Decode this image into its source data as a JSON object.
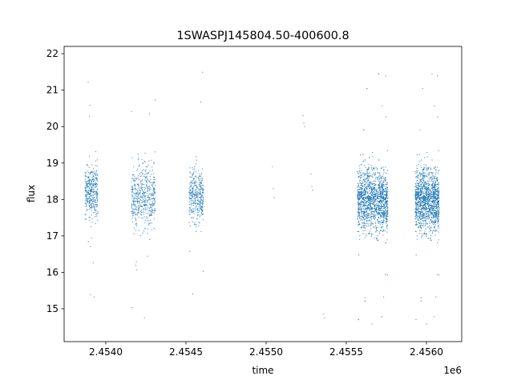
{
  "chart_data": {
    "type": "scatter",
    "title": "1SWASPJ145804.50-400600.8",
    "xlabel": "time",
    "ylabel": "flux",
    "x_offset_label": "1e6",
    "xlim": [
      2453740,
      2456220
    ],
    "ylim": [
      14.1,
      22.2
    ],
    "x_ticks": [
      {
        "value": 2454000,
        "label": "2.4540"
      },
      {
        "value": 2454500,
        "label": "2.4545"
      },
      {
        "value": 2455000,
        "label": "2.4550"
      },
      {
        "value": 2455500,
        "label": "2.4555"
      },
      {
        "value": 2456000,
        "label": "2.4560"
      }
    ],
    "y_ticks": [
      {
        "value": 15,
        "label": "15"
      },
      {
        "value": 16,
        "label": "16"
      },
      {
        "value": 17,
        "label": "17"
      },
      {
        "value": 18,
        "label": "18"
      },
      {
        "value": 19,
        "label": "19"
      },
      {
        "value": 20,
        "label": "20"
      },
      {
        "value": 21,
        "label": "21"
      },
      {
        "value": 22,
        "label": "22"
      }
    ],
    "grid": false,
    "marker_color": "#1f77b4",
    "observing_seasons": [
      {
        "x_start": 2453870,
        "x_end": 2453950,
        "y_center": 18.2,
        "y_spread": 0.5,
        "points": 380
      },
      {
        "x_start": 2454160,
        "x_end": 2454310,
        "y_center": 18.1,
        "y_spread": 0.6,
        "points": 520
      },
      {
        "x_start": 2454520,
        "x_end": 2454610,
        "y_center": 18.1,
        "y_spread": 0.5,
        "points": 380
      },
      {
        "x_start": 2455570,
        "x_end": 2455760,
        "y_center": 18.0,
        "y_spread": 0.6,
        "points": 1700
      },
      {
        "x_start": 2455930,
        "x_end": 2456080,
        "y_center": 18.0,
        "y_spread": 0.6,
        "points": 1500
      }
    ],
    "sparse_points": [
      [
        2455040,
        18.9
      ],
      [
        2455045,
        18.3
      ],
      [
        2455050,
        18.05
      ],
      [
        2455230,
        20.3
      ],
      [
        2455235,
        20.1
      ],
      [
        2455240,
        20.0
      ],
      [
        2455280,
        18.7
      ],
      [
        2455285,
        18.35
      ],
      [
        2455290,
        18.25
      ],
      [
        2455360,
        14.85
      ],
      [
        2455365,
        14.75
      ]
    ]
  }
}
